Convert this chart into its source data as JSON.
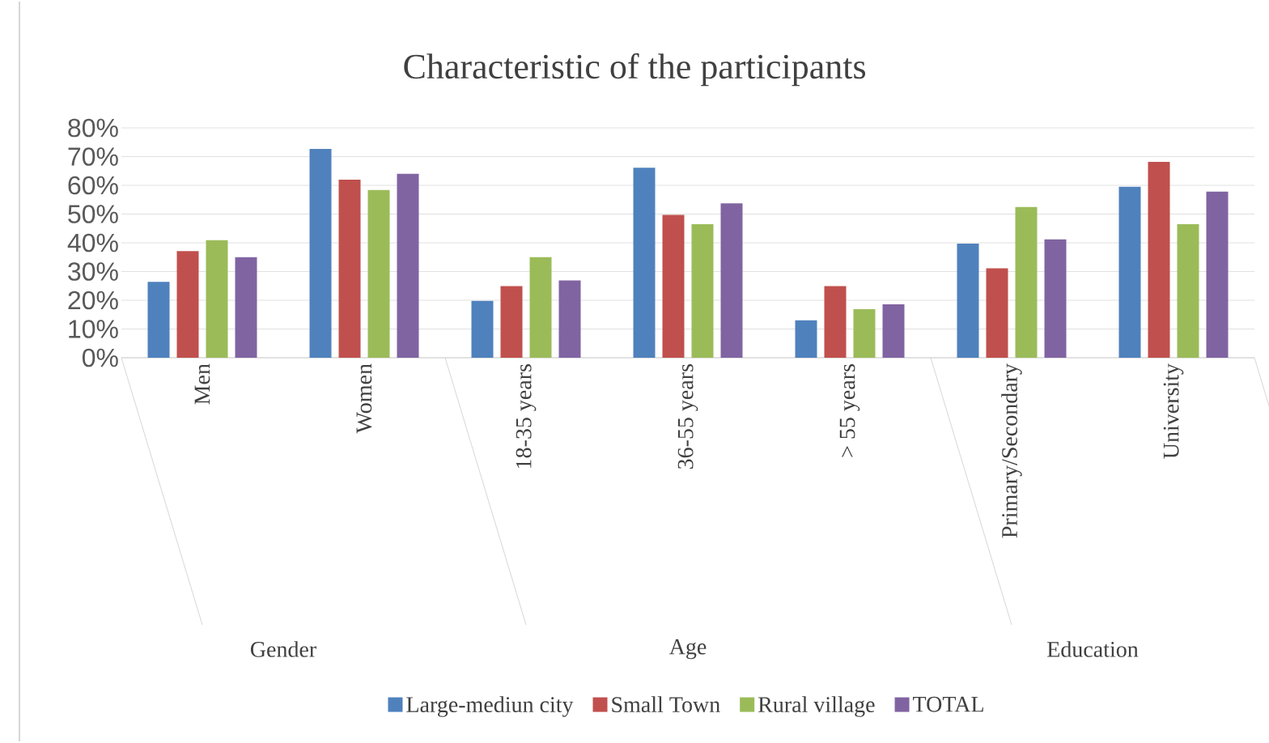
{
  "chart_data": {
    "type": "bar",
    "title": "Characteristic of the participants",
    "categories": [
      "Men",
      "Women",
      "18-35 years",
      "36-55 years",
      "> 55 years",
      "Primary/Secondary",
      "University"
    ],
    "annotations": [
      "Gender",
      "Age",
      "Education"
    ],
    "series": [
      {
        "name": "Large-mediun city",
        "color": "#4f81bd",
        "values": [
          26.4,
          72.7,
          19.8,
          66.1,
          13.0,
          39.7,
          59.5
        ]
      },
      {
        "name": "Small Town",
        "color": "#c0504d",
        "values": [
          37.1,
          62.0,
          24.9,
          49.7,
          24.9,
          31.1,
          68.2
        ]
      },
      {
        "name": "Rural village",
        "color": "#9bbb59",
        "values": [
          40.9,
          58.4,
          35.0,
          46.5,
          16.9,
          52.5,
          46.5
        ]
      },
      {
        "name": "TOTAL",
        "color": "#8064a2",
        "values": [
          35.0,
          64.0,
          26.9,
          53.7,
          18.6,
          41.2,
          57.8
        ]
      }
    ],
    "ylim": [
      0,
      80
    ],
    "yticks": [
      {
        "value": 0,
        "label": "0%"
      },
      {
        "value": 10,
        "label": "10%"
      },
      {
        "value": 20,
        "label": "20%"
      },
      {
        "value": 30,
        "label": "30%"
      },
      {
        "value": 40,
        "label": "40%"
      },
      {
        "value": 50,
        "label": "50%"
      },
      {
        "value": 60,
        "label": "60%"
      },
      {
        "value": 70,
        "label": "70%"
      },
      {
        "value": 80,
        "label": "80%"
      }
    ],
    "grid": "y",
    "legend": "bottom"
  }
}
